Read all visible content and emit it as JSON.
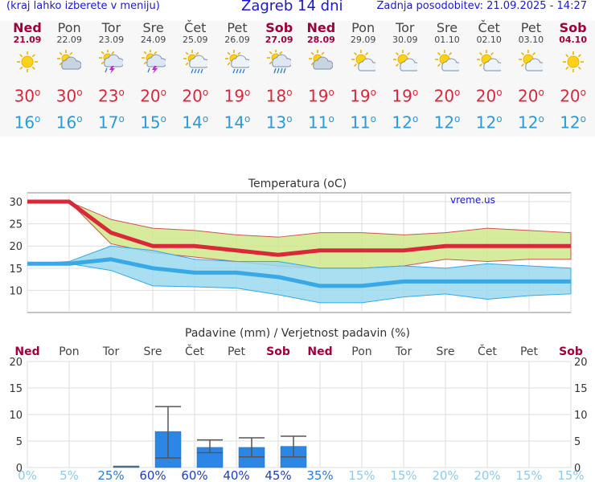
{
  "header": {
    "hint": "(kraj lahko izberete v meniju)",
    "title": "Zagreb 14 dni",
    "updated": "Zadnja posodobitev: 21.09.2025 - 14:27"
  },
  "days": [
    {
      "name": "Ned",
      "date": "21.09",
      "weekend": true,
      "icon": "sun-icon",
      "tmax": "30",
      "tmin": "16"
    },
    {
      "name": "Pon",
      "date": "22.09",
      "weekend": false,
      "icon": "cloud-icon",
      "tmax": "30",
      "tmin": "16"
    },
    {
      "name": "Tor",
      "date": "23.09",
      "weekend": false,
      "icon": "thunderstorm-icon",
      "tmax": "23",
      "tmin": "17"
    },
    {
      "name": "Sre",
      "date": "24.09",
      "weekend": false,
      "icon": "thunderstorm-icon",
      "tmax": "20",
      "tmin": "15"
    },
    {
      "name": "Čet",
      "date": "25.09",
      "weekend": false,
      "icon": "sun-rain-icon",
      "tmax": "20",
      "tmin": "14"
    },
    {
      "name": "Pet",
      "date": "26.09",
      "weekend": false,
      "icon": "sun-rain-icon",
      "tmax": "19",
      "tmin": "14"
    },
    {
      "name": "Sob",
      "date": "27.09",
      "weekend": true,
      "icon": "rain-cloud-icon",
      "tmax": "18",
      "tmin": "13"
    },
    {
      "name": "Ned",
      "date": "28.09",
      "weekend": true,
      "icon": "cloud-icon",
      "tmax": "19",
      "tmin": "11"
    },
    {
      "name": "Pon",
      "date": "29.09",
      "weekend": false,
      "icon": "partly-cloudy-icon",
      "tmax": "19",
      "tmin": "11"
    },
    {
      "name": "Tor",
      "date": "30.09",
      "weekend": false,
      "icon": "partly-cloudy-icon",
      "tmax": "19",
      "tmin": "12"
    },
    {
      "name": "Sre",
      "date": "01.10",
      "weekend": false,
      "icon": "partly-cloudy-icon",
      "tmax": "20",
      "tmin": "12"
    },
    {
      "name": "Čet",
      "date": "02.10",
      "weekend": false,
      "icon": "partly-cloudy-icon",
      "tmax": "20",
      "tmin": "12"
    },
    {
      "name": "Pet",
      "date": "03.10",
      "weekend": false,
      "icon": "partly-cloudy-icon",
      "tmax": "20",
      "tmin": "12"
    },
    {
      "name": "Sob",
      "date": "04.10",
      "weekend": true,
      "icon": "sun-icon",
      "tmax": "20",
      "tmin": "12"
    }
  ],
  "degree_symbol": "o",
  "colors": {
    "link": "#1a1acc",
    "weekend": "#a0003c",
    "tmax": "#d8283a",
    "tmin": "#2a9ad8",
    "max_band": "#cfe88a",
    "min_band": "#9ad9ee",
    "precip_bar": "#2b86e6"
  },
  "chart_data": [
    {
      "type": "line",
      "title": "Temperatura",
      "unit": "(oC)",
      "watermark": "vreme.us",
      "categories": [
        "Ned",
        "Pon",
        "Tor",
        "Sre",
        "Čet",
        "Pet",
        "Sob",
        "Ned",
        "Pon",
        "Tor",
        "Sre",
        "Čet",
        "Pet",
        "Sob"
      ],
      "ylim": [
        5,
        32
      ],
      "yticks": [
        10,
        15,
        20,
        25,
        30
      ],
      "series": [
        {
          "role": "max",
          "values": [
            30,
            30,
            23,
            20,
            20,
            19,
            18,
            19,
            19,
            19,
            20,
            20,
            20,
            20
          ]
        },
        {
          "role": "max_upper",
          "values": [
            30,
            30,
            26,
            24,
            23.5,
            22.5,
            22,
            23,
            23,
            22.5,
            23,
            24,
            23.5,
            23
          ]
        },
        {
          "role": "max_lower",
          "values": [
            30,
            30,
            20.5,
            18.5,
            17.5,
            16.5,
            15.5,
            15,
            15,
            15.5,
            17,
            16.5,
            17,
            17
          ]
        },
        {
          "role": "min",
          "values": [
            16,
            16,
            17,
            15,
            14,
            14,
            13,
            11,
            11,
            12,
            12,
            12,
            12,
            12
          ]
        },
        {
          "role": "min_upper",
          "values": [
            16,
            16.5,
            20,
            19,
            17,
            16.5,
            16.5,
            15,
            15,
            15.5,
            15,
            16,
            15.5,
            15
          ]
        },
        {
          "role": "min_lower",
          "values": [
            16,
            16,
            14.5,
            11,
            10.8,
            10.5,
            9,
            7.2,
            7.2,
            8.5,
            9.2,
            8,
            8.8,
            9.2
          ]
        }
      ]
    },
    {
      "type": "bar",
      "title": "Padavine (mm) / Verjetnost padavin (%)",
      "categories": [
        "Ned",
        "Pon",
        "Tor",
        "Sre",
        "Čet",
        "Pet",
        "Sob",
        "Ned",
        "Pon",
        "Tor",
        "Sre",
        "Čet",
        "Pet",
        "Sob"
      ],
      "ylim": [
        0,
        20
      ],
      "yticks": [
        0,
        5,
        10,
        15,
        20
      ],
      "values": [
        0,
        0,
        0.3,
        6.8,
        3.8,
        3.8,
        4.0,
        0,
        0,
        0,
        0,
        0,
        0,
        0
      ],
      "error_high": [
        null,
        null,
        null,
        11.5,
        5.2,
        5.6,
        5.9,
        null,
        null,
        null,
        null,
        null,
        null,
        null
      ],
      "error_low": [
        null,
        null,
        null,
        1.8,
        2.8,
        2.0,
        2.0,
        null,
        null,
        null,
        null,
        null,
        null,
        null
      ],
      "probability": [
        "0%",
        "5%",
        "25%",
        "60%",
        "60%",
        "40%",
        "45%",
        "35%",
        "15%",
        "15%",
        "20%",
        "20%",
        "15%",
        "15%"
      ]
    }
  ]
}
